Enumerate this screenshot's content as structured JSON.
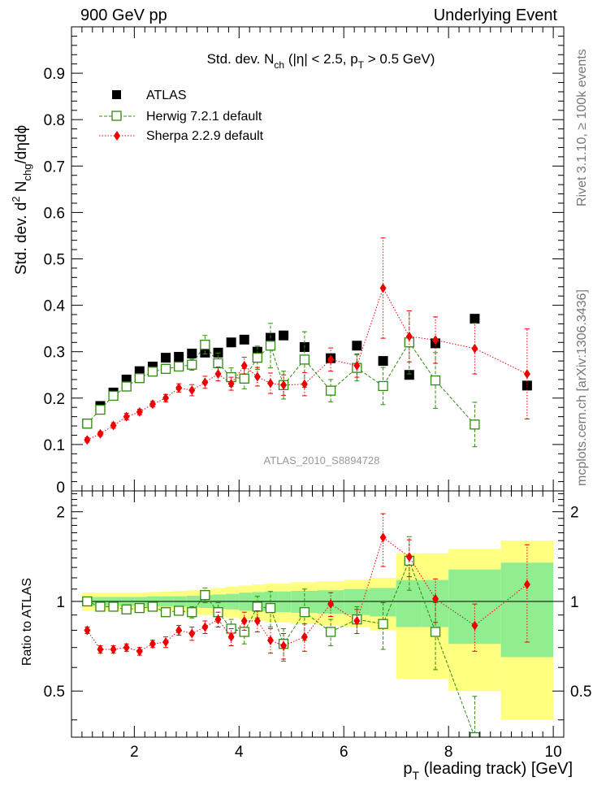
{
  "header": {
    "left": "900 GeV pp",
    "right": "Underlying Event"
  },
  "side_labels": {
    "rivet": "Rivet 3.1.10, ≥ 100k events",
    "mcplots": "mcplots.cern.ch [arXiv:1306.3436]"
  },
  "chart_data": [
    {
      "type": "scatter",
      "panel": "main",
      "title": "Std. dev. N_ch (|η| < 2.5, p_T > 0.5 GeV)",
      "ylabel": "Std. dev. d^2 N_chg/dηdϕ",
      "xlabel": "p_T (leading track) [GeV]",
      "watermark": "ATLAS_2010_S8894728",
      "xlim": [
        0.8,
        10.2
      ],
      "ylim": [
        0,
        1.0
      ],
      "yticks": [
        0.1,
        0.2,
        0.3,
        0.4,
        0.5,
        0.6,
        0.7,
        0.8,
        0.9
      ],
      "ytick_labels": [
        "0.1",
        "0.2",
        "0.3",
        "0.4",
        "0.5",
        "0.6",
        "0.7",
        "0.8",
        "0.9"
      ],
      "bottom_tick_label": "0",
      "legend_placement": "top-left",
      "series": [
        {
          "name": "ATLAS",
          "color": "#000000",
          "marker": "filled-square",
          "x": [
            1.1,
            1.35,
            1.6,
            1.85,
            2.1,
            2.35,
            2.6,
            2.85,
            3.1,
            3.35,
            3.6,
            3.85,
            4.1,
            4.35,
            4.6,
            4.85,
            5.25,
            5.75,
            6.25,
            6.75,
            7.25,
            7.75,
            8.5,
            9.5
          ],
          "y": [
            0.145,
            0.183,
            0.212,
            0.24,
            0.258,
            0.268,
            0.287,
            0.289,
            0.296,
            0.298,
            0.298,
            0.32,
            0.326,
            0.3,
            0.33,
            0.335,
            0.31,
            0.286,
            0.313,
            0.28,
            0.25,
            0.318,
            0.371,
            0.227
          ]
        },
        {
          "name": "Herwig 7.2.1 default",
          "color": "#2e8b0e",
          "marker": "open-square",
          "line": "dashed",
          "x": [
            1.1,
            1.35,
            1.6,
            1.85,
            2.1,
            2.35,
            2.6,
            2.85,
            3.1,
            3.35,
            3.6,
            3.85,
            4.1,
            4.35,
            4.6,
            4.85,
            5.25,
            5.75,
            6.25,
            6.75,
            7.25,
            7.75,
            8.5
          ],
          "y": [
            0.145,
            0.175,
            0.205,
            0.225,
            0.243,
            0.257,
            0.263,
            0.268,
            0.272,
            0.315,
            0.275,
            0.245,
            0.242,
            0.287,
            0.313,
            0.228,
            0.283,
            0.216,
            0.265,
            0.226,
            0.32,
            0.238,
            0.143
          ],
          "yerr": [
            0.004,
            0.004,
            0.005,
            0.005,
            0.006,
            0.007,
            0.008,
            0.009,
            0.012,
            0.02,
            0.022,
            0.02,
            0.022,
            0.025,
            0.048,
            0.03,
            0.06,
            0.024,
            0.028,
            0.04,
            0.068,
            0.06,
            0.048
          ]
        },
        {
          "name": "Sherpa 2.2.9 default",
          "color": "#ee0000",
          "marker": "diamond",
          "line": "dotted",
          "x": [
            1.1,
            1.35,
            1.6,
            1.85,
            2.1,
            2.35,
            2.6,
            2.85,
            3.1,
            3.35,
            3.6,
            3.85,
            4.1,
            4.35,
            4.6,
            4.85,
            5.25,
            5.75,
            6.25,
            6.75,
            7.25,
            7.75,
            8.5,
            9.5
          ],
          "y": [
            0.11,
            0.123,
            0.141,
            0.16,
            0.17,
            0.187,
            0.2,
            0.222,
            0.217,
            0.234,
            0.252,
            0.231,
            0.27,
            0.246,
            0.232,
            0.228,
            0.23,
            0.283,
            0.27,
            0.437,
            0.333,
            0.325,
            0.307,
            0.252
          ],
          "yerr": [
            0.005,
            0.005,
            0.006,
            0.007,
            0.006,
            0.006,
            0.008,
            0.009,
            0.012,
            0.013,
            0.015,
            0.014,
            0.018,
            0.02,
            0.022,
            0.022,
            0.025,
            0.025,
            0.025,
            0.108,
            0.055,
            0.05,
            0.055,
            0.097
          ]
        }
      ]
    },
    {
      "type": "scatter",
      "panel": "ratio",
      "ylabel": "Ratio to ATLAS",
      "xlabel": "p_T (leading track) [GeV]",
      "xlim": [
        0.8,
        10.2
      ],
      "ylim": [
        0.35,
        2.35
      ],
      "yticks": [
        0.5,
        1,
        2
      ],
      "ytick_labels": [
        "0.5",
        "1",
        "2"
      ],
      "xticks": [
        2,
        4,
        6,
        8,
        10
      ],
      "xtick_labels": [
        "2",
        "4",
        "6",
        "8",
        "10"
      ],
      "bands": {
        "edges": [
          1.0,
          1.25,
          1.5,
          1.75,
          2.0,
          2.25,
          2.5,
          2.75,
          3.0,
          3.25,
          3.5,
          3.75,
          4.0,
          4.25,
          4.5,
          4.75,
          5.0,
          5.5,
          6.0,
          6.5,
          7.0,
          7.5,
          8.0,
          9.0,
          10.0
        ],
        "stat_color": "#90ee90",
        "total_color": "#ffff80",
        "stat_half": [
          0.035,
          0.035,
          0.035,
          0.035,
          0.035,
          0.04,
          0.04,
          0.04,
          0.045,
          0.05,
          0.055,
          0.06,
          0.07,
          0.075,
          0.08,
          0.08,
          0.085,
          0.09,
          0.1,
          0.11,
          0.18,
          0.18,
          0.28,
          0.35
        ],
        "total_half": [
          0.07,
          0.07,
          0.07,
          0.07,
          0.07,
          0.075,
          0.08,
          0.085,
          0.09,
          0.1,
          0.11,
          0.12,
          0.13,
          0.14,
          0.15,
          0.15,
          0.16,
          0.17,
          0.18,
          0.2,
          0.45,
          0.45,
          0.5,
          0.6
        ]
      },
      "series": [
        {
          "name": "Herwig 7.2.1 default",
          "color": "#2e8b0e",
          "marker": "open-square",
          "line": "dashed",
          "x": [
            1.1,
            1.35,
            1.6,
            1.85,
            2.1,
            2.35,
            2.6,
            2.85,
            3.1,
            3.35,
            3.6,
            3.85,
            4.1,
            4.35,
            4.6,
            4.85,
            5.25,
            5.75,
            6.25,
            6.75,
            7.25,
            7.75,
            8.5
          ],
          "y": [
            1.0,
            0.96,
            0.96,
            0.94,
            0.95,
            0.96,
            0.92,
            0.93,
            0.92,
            1.05,
            0.92,
            0.81,
            0.79,
            0.96,
            0.95,
            0.72,
            0.92,
            0.79,
            0.87,
            0.84,
            1.37,
            0.79,
            0.35
          ],
          "yerr": [
            0.03,
            0.02,
            0.02,
            0.02,
            0.03,
            0.03,
            0.03,
            0.03,
            0.04,
            0.06,
            0.07,
            0.06,
            0.07,
            0.08,
            0.13,
            0.09,
            0.18,
            0.08,
            0.09,
            0.15,
            0.28,
            0.2,
            0.13
          ]
        },
        {
          "name": "Sherpa 2.2.9 default",
          "color": "#ee0000",
          "marker": "diamond",
          "line": "dotted",
          "x": [
            1.1,
            1.35,
            1.6,
            1.85,
            2.1,
            2.35,
            2.6,
            2.85,
            3.1,
            3.35,
            3.6,
            3.85,
            4.1,
            4.35,
            4.6,
            4.85,
            5.25,
            5.75,
            6.25,
            6.75,
            7.25,
            7.75,
            8.5,
            9.5
          ],
          "y": [
            0.8,
            0.69,
            0.69,
            0.7,
            0.68,
            0.72,
            0.73,
            0.8,
            0.78,
            0.82,
            0.87,
            0.76,
            0.86,
            0.86,
            0.74,
            0.71,
            0.76,
            0.98,
            0.86,
            1.64,
            1.41,
            1.02,
            0.83,
            1.14
          ],
          "yerr": [
            0.02,
            0.02,
            0.02,
            0.02,
            0.02,
            0.02,
            0.03,
            0.03,
            0.04,
            0.04,
            0.05,
            0.05,
            0.06,
            0.07,
            0.07,
            0.07,
            0.08,
            0.09,
            0.08,
            0.33,
            0.2,
            0.17,
            0.15,
            0.41
          ]
        }
      ]
    }
  ]
}
